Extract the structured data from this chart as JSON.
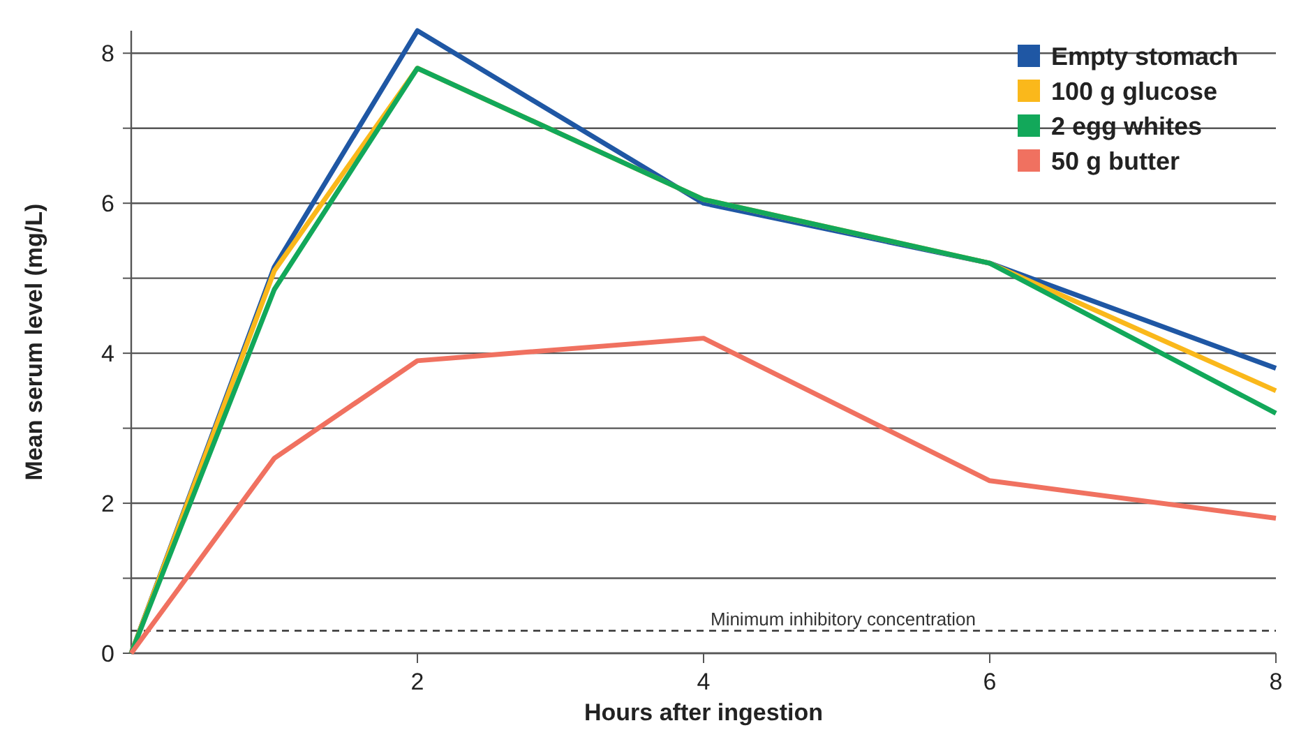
{
  "chart_data": {
    "type": "line",
    "xlabel": "Hours after ingestion",
    "ylabel": "Mean serum level (mg/L)",
    "x": [
      0,
      1,
      2,
      4,
      6,
      8
    ],
    "series": [
      {
        "name": "Empty stomach",
        "color": "#1f57a4",
        "values": [
          0,
          5.15,
          8.3,
          6.0,
          5.2,
          3.8
        ]
      },
      {
        "name": "100 g glucose",
        "color": "#fab81b",
        "values": [
          0,
          5.1,
          7.8,
          6.05,
          5.2,
          3.5
        ]
      },
      {
        "name": "2 egg whites",
        "color": "#12a85a",
        "values": [
          0,
          4.85,
          7.8,
          6.05,
          5.2,
          3.2
        ]
      },
      {
        "name": "50 g butter",
        "color": "#f07160",
        "values": [
          0,
          2.6,
          3.9,
          4.2,
          2.3,
          1.8
        ]
      }
    ],
    "xlim": [
      0,
      8
    ],
    "xticks": [
      2,
      4,
      6,
      8
    ],
    "ylim": [
      0,
      8.3
    ],
    "yticks": [
      0,
      {
        "value": 1,
        "label": null
      },
      2,
      {
        "value": 3,
        "label": null
      },
      4,
      {
        "value": 5,
        "label": null
      },
      6,
      {
        "value": 7,
        "label": null
      },
      8
    ],
    "ref_lines": [
      {
        "axis": "y",
        "value": 0.3,
        "label": "Minimum inhibitory concentration",
        "color": "#333333",
        "line_style": "dashed"
      }
    ],
    "grid": "y",
    "legend": "top right",
    "marker": "none",
    "line_style": "solid"
  }
}
